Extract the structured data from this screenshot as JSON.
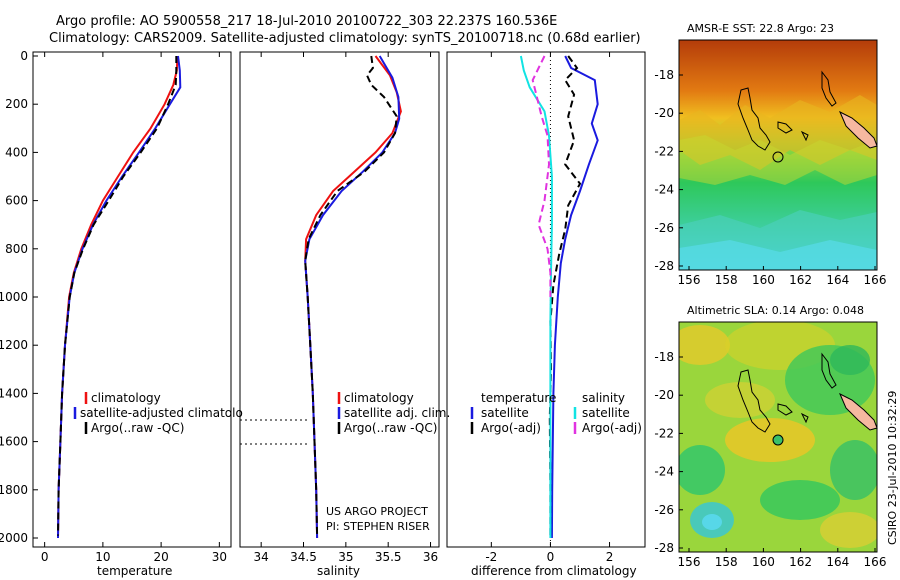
{
  "title_line1": "Argo profile: AO 5900558_217 18-Jul-2010 20100722_303 22.237S 160.536E",
  "title_line2": "Climatology: CARS2009. Satellite-adjusted climatology: synTS_20100718.nc (0.68d earlier)",
  "credit_project": "US ARGO PROJECT",
  "credit_pi": "PI: STEPHEN RISER",
  "side_stamp": "CSIRO 23-Jul-2010 10:32:29",
  "colors": {
    "red": "#ee1111",
    "blue": "#1a1adf",
    "black": "#000000",
    "cyan": "#11e3e3",
    "magenta": "#e033e0"
  },
  "chart_data": [
    {
      "type": "line",
      "name": "temperature",
      "xlabel": "temperature",
      "xlim": [
        -2,
        32
      ],
      "ylim": [
        2050,
        0
      ],
      "xticks": [
        0,
        10,
        20,
        30
      ],
      "yticks": [
        0,
        200,
        400,
        600,
        800,
        1000,
        1200,
        1400,
        1600,
        1800,
        2000
      ],
      "legend": [
        "climatology",
        "satellite-adjusted climatolo",
        "Argo(..raw -QC)"
      ],
      "series": [
        {
          "name": "climatology",
          "color": "red",
          "style": "solid",
          "points": [
            [
              22.8,
              0
            ],
            [
              22.7,
              60
            ],
            [
              22.1,
              120
            ],
            [
              20.6,
              200
            ],
            [
              18.2,
              300
            ],
            [
              15.2,
              400
            ],
            [
              12.6,
              500
            ],
            [
              10.0,
              600
            ],
            [
              8.0,
              700
            ],
            [
              6.3,
              800
            ],
            [
              5.0,
              900
            ],
            [
              4.2,
              1000
            ],
            [
              3.5,
              1200
            ],
            [
              3.0,
              1400
            ],
            [
              2.7,
              1600
            ],
            [
              2.4,
              1800
            ],
            [
              2.3,
              2000
            ]
          ]
        },
        {
          "name": "satellite-adjusted climatolo",
          "color": "blue",
          "style": "solid",
          "points": [
            [
              22.9,
              0
            ],
            [
              23.2,
              60
            ],
            [
              23.3,
              130
            ],
            [
              21.5,
              200
            ],
            [
              19.0,
              300
            ],
            [
              16.2,
              400
            ],
            [
              13.3,
              500
            ],
            [
              10.6,
              600
            ],
            [
              8.3,
              700
            ],
            [
              6.5,
              800
            ],
            [
              5.1,
              900
            ],
            [
              4.3,
              1000
            ],
            [
              3.5,
              1200
            ],
            [
              3.0,
              1400
            ],
            [
              2.7,
              1600
            ],
            [
              2.4,
              1800
            ],
            [
              2.3,
              2000
            ]
          ]
        },
        {
          "name": "Argo(..raw -QC)",
          "color": "black",
          "style": "dash",
          "points": [
            [
              22.6,
              0
            ],
            [
              22.6,
              60
            ],
            [
              22.5,
              120
            ],
            [
              21.2,
              200
            ],
            [
              19.3,
              300
            ],
            [
              16.5,
              400
            ],
            [
              13.5,
              500
            ],
            [
              11.0,
              600
            ],
            [
              8.4,
              700
            ],
            [
              6.6,
              800
            ],
            [
              5.1,
              900
            ],
            [
              4.3,
              1000
            ],
            [
              3.5,
              1200
            ],
            [
              3.0,
              1400
            ],
            [
              2.7,
              1600
            ],
            [
              2.4,
              1800
            ],
            [
              2.3,
              1990
            ]
          ]
        }
      ]
    },
    {
      "type": "line",
      "name": "salinity",
      "xlabel": "salinity",
      "xlim": [
        33.75,
        36.1
      ],
      "ylim": [
        2050,
        0
      ],
      "xticks": [
        34,
        34.5,
        35,
        35.5,
        36
      ],
      "yticks": [],
      "legend": [
        "climatology",
        "satellite adj. clim.",
        "Argo(..raw -QC)"
      ],
      "series": [
        {
          "name": "climatology",
          "color": "red",
          "style": "solid",
          "points": [
            [
              35.35,
              0
            ],
            [
              35.52,
              80
            ],
            [
              35.6,
              150
            ],
            [
              35.65,
              230
            ],
            [
              35.55,
              320
            ],
            [
              35.35,
              400
            ],
            [
              35.1,
              480
            ],
            [
              34.85,
              560
            ],
            [
              34.65,
              660
            ],
            [
              34.53,
              760
            ],
            [
              34.52,
              850
            ],
            [
              34.55,
              1000
            ],
            [
              34.58,
              1200
            ],
            [
              34.61,
              1400
            ],
            [
              34.63,
              1600
            ],
            [
              34.65,
              1800
            ],
            [
              34.66,
              2000
            ]
          ]
        },
        {
          "name": "satellite adj. clim.",
          "color": "blue",
          "style": "solid",
          "points": [
            [
              35.4,
              0
            ],
            [
              35.55,
              90
            ],
            [
              35.62,
              170
            ],
            [
              35.63,
              260
            ],
            [
              35.58,
              320
            ],
            [
              35.43,
              400
            ],
            [
              35.2,
              480
            ],
            [
              34.95,
              560
            ],
            [
              34.73,
              660
            ],
            [
              34.57,
              760
            ],
            [
              34.52,
              850
            ],
            [
              34.55,
              1000
            ],
            [
              34.58,
              1200
            ],
            [
              34.61,
              1400
            ],
            [
              34.63,
              1600
            ],
            [
              34.65,
              1800
            ],
            [
              34.66,
              2000
            ]
          ]
        },
        {
          "name": "Argo(..raw -QC)",
          "color": "black",
          "style": "dash",
          "points": [
            [
              35.3,
              0
            ],
            [
              35.32,
              50
            ],
            [
              35.25,
              80
            ],
            [
              35.3,
              120
            ],
            [
              35.45,
              170
            ],
            [
              35.6,
              250
            ],
            [
              35.58,
              320
            ],
            [
              35.45,
              400
            ],
            [
              35.22,
              480
            ],
            [
              34.9,
              560
            ],
            [
              34.7,
              660
            ],
            [
              34.56,
              760
            ],
            [
              34.52,
              850
            ],
            [
              34.55,
              1000
            ],
            [
              34.58,
              1200
            ],
            [
              34.61,
              1400
            ],
            [
              34.63,
              1600
            ],
            [
              34.65,
              1800
            ],
            [
              34.66,
              1990
            ]
          ]
        }
      ]
    },
    {
      "type": "line",
      "name": "difference",
      "xlabel": "difference from climatology",
      "xlim": [
        -3.5,
        3.2
      ],
      "ylim": [
        2050,
        0
      ],
      "xticks": [
        -2,
        0,
        2
      ],
      "yticks": [],
      "zero_line": true,
      "legend": [
        "temperature",
        "satellite",
        "Argo(-adj)",
        "salinity",
        "satellite",
        "Argo(-adj)"
      ],
      "series": [
        {
          "name": "temperature satellite",
          "color": "blue",
          "style": "solid",
          "points": [
            [
              0.5,
              0
            ],
            [
              0.7,
              50
            ],
            [
              1.5,
              100
            ],
            [
              1.6,
              200
            ],
            [
              1.4,
              280
            ],
            [
              1.6,
              350
            ],
            [
              1.3,
              450
            ],
            [
              1.0,
              560
            ],
            [
              0.7,
              660
            ],
            [
              0.5,
              760
            ],
            [
              0.35,
              860
            ],
            [
              0.25,
              1000
            ],
            [
              0.15,
              1200
            ],
            [
              0.1,
              1400
            ],
            [
              0.08,
              1600
            ],
            [
              0.06,
              1800
            ],
            [
              0.05,
              2000
            ]
          ]
        },
        {
          "name": "temperature Argo(-adj)",
          "color": "black",
          "style": "dash",
          "points": [
            [
              0.6,
              0
            ],
            [
              0.9,
              50
            ],
            [
              0.5,
              100
            ],
            [
              0.8,
              160
            ],
            [
              0.6,
              250
            ],
            [
              0.8,
              350
            ],
            [
              0.5,
              450
            ],
            [
              1.0,
              530
            ],
            [
              0.6,
              620
            ],
            [
              0.5,
              720
            ],
            [
              0.3,
              820
            ],
            [
              0.1,
              950
            ],
            [
              0.0,
              1100
            ],
            [
              0.02,
              1300
            ],
            [
              -0.02,
              1500
            ],
            [
              0.0,
              1800
            ],
            [
              0.0,
              1990
            ]
          ]
        },
        {
          "name": "salinity satellite",
          "color": "cyan",
          "style": "solid",
          "points": [
            [
              -1.0,
              0
            ],
            [
              -0.9,
              60
            ],
            [
              -0.7,
              130
            ],
            [
              -0.2,
              230
            ],
            [
              -0.05,
              330
            ],
            [
              0.05,
              500
            ],
            [
              0.05,
              700
            ],
            [
              0.02,
              900
            ],
            [
              0.0,
              1100
            ],
            [
              0.0,
              1300
            ],
            [
              0.0,
              1500
            ],
            [
              0.0,
              1800
            ],
            [
              0.0,
              2000
            ]
          ]
        },
        {
          "name": "salinity Argo(-adj)",
          "color": "magenta",
          "style": "dash",
          "points": [
            [
              -0.2,
              0
            ],
            [
              -0.4,
              50
            ],
            [
              -0.6,
              100
            ],
            [
              -0.5,
              150
            ],
            [
              -0.3,
              250
            ],
            [
              -0.1,
              330
            ],
            [
              -0.05,
              450
            ],
            [
              -0.2,
              600
            ],
            [
              -0.4,
              700
            ],
            [
              -0.1,
              800
            ],
            [
              0.0,
              900
            ],
            [
              0.0,
              1000
            ]
          ]
        }
      ]
    }
  ],
  "maps": [
    {
      "title": "AMSR-E SST: 22.8 Argo: 23",
      "xticks": [
        "156",
        "158",
        "160",
        "162",
        "164",
        "166"
      ],
      "yticks": [
        "-18",
        "-20",
        "-22",
        "-24",
        "-26",
        "-28"
      ]
    },
    {
      "title": "Altimetric SLA: 0.14 Argo: 0.048",
      "xticks": [
        "156",
        "158",
        "160",
        "162",
        "164",
        "166"
      ],
      "yticks": [
        "-18",
        "-20",
        "-22",
        "-24",
        "-26",
        "-28"
      ]
    }
  ]
}
